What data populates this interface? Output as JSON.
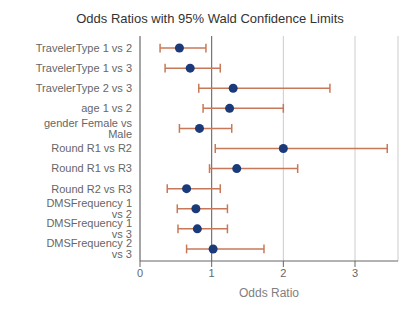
{
  "chart_data": {
    "type": "forest",
    "orientation": "horizontal",
    "title": "Odds Ratios with 95% Wald Confidence Limits",
    "xlabel": "Odds Ratio",
    "categories": [
      "TravelerType 1 vs 2",
      "TravelerType 1 vs 3",
      "TravelerType 2 vs 3",
      "age 1 vs 2",
      "gender Female vs Male",
      "Round R1 vs R2",
      "Round R1 vs R3",
      "Round R2 vs R3",
      "DMSFrequency 1 vs 2",
      "DMSFrequency 1 vs 3",
      "DMSFrequency 2 vs 3"
    ],
    "series": [
      {
        "type": "errorbar",
        "color": "#c87858",
        "ci_low": [
          0.28,
          0.35,
          0.82,
          0.88,
          0.55,
          1.05,
          0.97,
          0.38,
          0.52,
          0.53,
          0.65
        ],
        "ci_high": [
          0.92,
          1.12,
          2.65,
          2.0,
          1.28,
          3.45,
          2.2,
          1.12,
          1.22,
          1.22,
          1.73
        ]
      },
      {
        "type": "scatter",
        "color": "#1a3a7a",
        "values": [
          0.55,
          0.7,
          1.3,
          1.25,
          0.83,
          2.0,
          1.35,
          0.65,
          0.78,
          0.8,
          1.02
        ]
      }
    ],
    "reference_line": 1,
    "xlim": [
      0,
      3.6
    ],
    "xticks": [
      0,
      1,
      2,
      3
    ],
    "grid": true
  }
}
